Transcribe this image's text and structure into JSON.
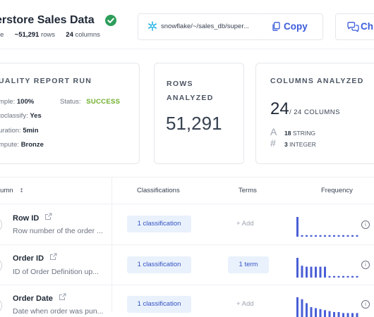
{
  "header": {
    "title": "erstore Sales Data",
    "meta_prefix": "le",
    "row_count": "~51,291",
    "row_label": "rows",
    "col_count": "24",
    "col_label": "columns",
    "path": "snowflake/~/sales_db/super...",
    "copy_label": "Copy",
    "chat_label": "Ch"
  },
  "quality": {
    "title": "UALITY REPORT RUN",
    "items": [
      {
        "label": "mple:",
        "value": "100%"
      },
      {
        "label": "toclassify:",
        "value": "Yes"
      },
      {
        "label": "uration:",
        "value": "5min"
      },
      {
        "label": "mpute:",
        "value": "Bronze"
      }
    ],
    "status_label": "Status:",
    "status_value": "SUCCESS",
    "status_color": "#6fae2b"
  },
  "rows_card": {
    "title_line1": "ROWS",
    "title_line2": "ANALYZED",
    "value": "51,291"
  },
  "cols_card": {
    "title": "COLUMNS ANALYZED",
    "value": "24",
    "total": "/ 24 COLUMNS",
    "types": [
      {
        "icon": "A",
        "count": "18",
        "label": "STRING",
        "icon_name": "string-type-icon"
      },
      {
        "icon": "#",
        "count": "3",
        "label": "INTEGER",
        "icon_name": "integer-type-icon"
      }
    ]
  },
  "table": {
    "headers": {
      "column": "lumn",
      "classifications": "Classifications",
      "terms": "Terms",
      "frequency": "Frequency"
    },
    "rows": [
      {
        "name": "Row ID",
        "desc": "Row number of the order ...",
        "classification": "1 classification",
        "term": "+ Add",
        "freq": [
          1,
          0.08,
          0.08,
          0.08,
          0.08,
          0.08,
          0.08,
          0.08,
          0.08,
          0.08,
          0.08,
          0.08,
          0.08,
          0.08
        ]
      },
      {
        "name": "Order ID",
        "desc": "ID of Order Definition up...",
        "classification": "1 classification",
        "term": "1 term",
        "freq": [
          1,
          0.6,
          0.55,
          0.55,
          0.55,
          0.55,
          0.55,
          0.08,
          0.08,
          0.08,
          0.08,
          0.08,
          0.08,
          0.08
        ]
      },
      {
        "name": "Order Date",
        "desc": "Date when order was pun...",
        "classification": "1 classification",
        "term": "+ Add",
        "freq": [
          1,
          0.9,
          0.7,
          0.5,
          0.45,
          0.4,
          0.35,
          0.3,
          0.25,
          0.25,
          0.2,
          0.2,
          0.2,
          0.2
        ]
      }
    ]
  },
  "colors": {
    "accent": "#3b5bdb",
    "bar": "#4a5fd6",
    "pill_bg": "#e9f1fc"
  }
}
